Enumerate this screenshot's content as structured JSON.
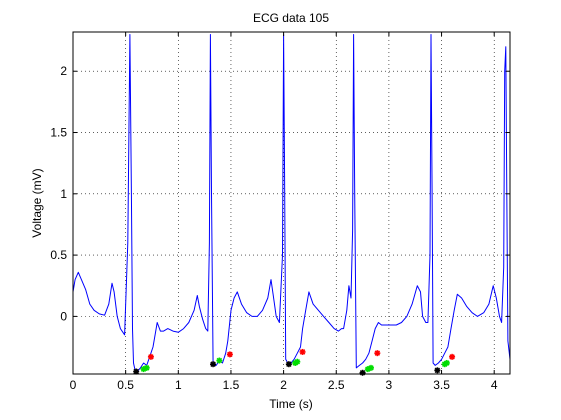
{
  "chart_data": {
    "type": "line",
    "title": "ECG data 105",
    "xlabel": "Time (s)",
    "ylabel": "Voltage (mV)",
    "xlim": [
      0,
      4.15
    ],
    "ylim": [
      -0.47,
      2.32
    ],
    "xticks": [
      0,
      0.5,
      1,
      1.5,
      2,
      2.5,
      3,
      3.5,
      4
    ],
    "xtick_labels": [
      "0",
      "0.5",
      "1",
      "1.5",
      "2",
      "2.5",
      "3",
      "3.5",
      "4"
    ],
    "yticks": [
      0,
      0.5,
      1,
      1.5,
      2
    ],
    "ytick_labels": [
      "0",
      "0.5",
      "1",
      "1.5",
      "2"
    ],
    "grid": true,
    "line_color": "#0000ff",
    "series": [
      {
        "x": [
          0.0,
          0.02,
          0.05,
          0.08,
          0.12,
          0.16,
          0.2,
          0.25,
          0.3,
          0.34,
          0.37,
          0.39,
          0.42,
          0.45,
          0.49,
          0.52,
          0.54,
          0.555,
          0.565,
          0.575,
          0.59,
          0.61,
          0.64,
          0.67,
          0.7,
          0.72,
          0.74,
          0.76,
          0.78,
          0.8,
          0.83,
          0.86,
          0.9,
          0.95,
          1.0,
          1.05,
          1.1,
          1.15,
          1.18,
          1.2,
          1.23,
          1.26,
          1.28,
          1.295,
          1.305,
          1.315,
          1.33,
          1.36,
          1.39,
          1.42,
          1.45,
          1.47,
          1.5,
          1.53,
          1.56,
          1.6,
          1.65,
          1.7,
          1.75,
          1.8,
          1.85,
          1.88,
          1.9,
          1.93,
          1.96,
          1.99,
          2.0,
          2.01,
          2.02,
          2.04,
          2.07,
          2.1,
          2.13,
          2.16,
          2.18,
          2.21,
          2.24,
          2.28,
          2.33,
          2.38,
          2.43,
          2.48,
          2.52,
          2.55,
          2.57,
          2.6,
          2.62,
          2.64,
          2.655,
          2.665,
          2.675,
          2.69,
          2.72,
          2.75,
          2.78,
          2.81,
          2.84,
          2.87,
          2.9,
          2.93,
          2.97,
          3.02,
          3.07,
          3.12,
          3.17,
          3.22,
          3.27,
          3.3,
          3.32,
          3.35,
          3.37,
          3.39,
          3.4,
          3.41,
          3.42,
          3.44,
          3.47,
          3.5,
          3.53,
          3.56,
          3.59,
          3.62,
          3.65,
          3.69,
          3.74,
          3.79,
          3.84,
          3.9,
          3.95,
          3.99,
          4.02,
          4.05,
          4.07,
          4.09,
          4.1,
          4.11,
          4.12,
          4.13,
          4.15
        ],
        "y": [
          0.2,
          0.3,
          0.36,
          0.3,
          0.22,
          0.1,
          0.05,
          0.02,
          0.01,
          0.1,
          0.27,
          0.2,
          0.0,
          -0.1,
          -0.15,
          0.6,
          2.3,
          1.0,
          -0.1,
          -0.38,
          -0.44,
          -0.45,
          -0.42,
          -0.38,
          -0.4,
          -0.35,
          -0.3,
          -0.25,
          -0.15,
          -0.05,
          -0.12,
          -0.12,
          -0.1,
          -0.12,
          -0.13,
          -0.1,
          -0.05,
          0.05,
          0.17,
          0.08,
          -0.02,
          -0.1,
          -0.12,
          0.6,
          2.3,
          1.0,
          -0.4,
          -0.4,
          -0.36,
          -0.38,
          -0.3,
          -0.2,
          0.05,
          0.15,
          0.2,
          0.1,
          0.03,
          0.0,
          0.0,
          0.05,
          0.15,
          0.3,
          0.18,
          0.0,
          -0.05,
          0.5,
          2.3,
          1.0,
          -0.35,
          -0.38,
          -0.38,
          -0.35,
          -0.3,
          -0.25,
          -0.1,
          0.05,
          0.2,
          0.1,
          0.05,
          0.0,
          -0.05,
          -0.1,
          -0.12,
          -0.1,
          -0.1,
          0.05,
          0.25,
          0.15,
          0.7,
          2.3,
          1.0,
          -0.42,
          -0.4,
          -0.38,
          -0.35,
          -0.3,
          -0.2,
          -0.1,
          -0.05,
          -0.07,
          -0.07,
          -0.07,
          -0.07,
          -0.05,
          0.0,
          0.1,
          0.25,
          0.2,
          0.0,
          -0.05,
          -0.05,
          0.5,
          2.3,
          1.0,
          -0.38,
          -0.4,
          -0.38,
          -0.35,
          -0.3,
          -0.25,
          -0.1,
          0.05,
          0.18,
          0.15,
          0.08,
          0.03,
          0.0,
          0.03,
          0.1,
          0.25,
          0.15,
          0.0,
          -0.05,
          0.4,
          2.0,
          2.2,
          1.0,
          -0.2,
          -0.35
        ]
      }
    ],
    "markers": [
      {
        "color": "#000000",
        "points": [
          [
            0.6,
            -0.45
          ],
          [
            1.33,
            -0.39
          ],
          [
            2.05,
            -0.39
          ],
          [
            2.75,
            -0.46
          ],
          [
            3.46,
            -0.44
          ]
        ]
      },
      {
        "color": "#00dd00",
        "points": [
          [
            0.67,
            -0.43
          ],
          [
            0.7,
            -0.42
          ],
          [
            1.39,
            -0.36
          ],
          [
            2.11,
            -0.38
          ],
          [
            2.13,
            -0.37
          ],
          [
            2.8,
            -0.43
          ],
          [
            2.83,
            -0.42
          ],
          [
            3.53,
            -0.39
          ],
          [
            3.55,
            -0.38
          ]
        ]
      },
      {
        "color": "#ff0000",
        "points": [
          [
            0.74,
            -0.33
          ],
          [
            1.49,
            -0.31
          ],
          [
            2.18,
            -0.29
          ],
          [
            2.89,
            -0.3
          ],
          [
            3.6,
            -0.33
          ]
        ]
      }
    ]
  }
}
